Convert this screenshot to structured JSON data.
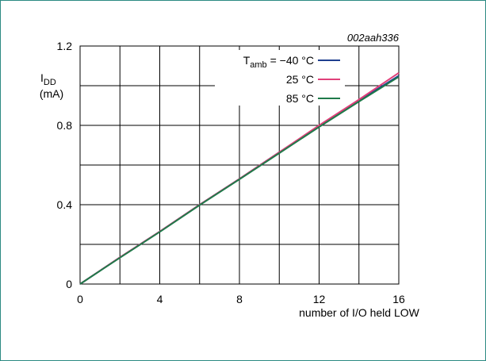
{
  "chart_data": {
    "type": "line",
    "figure_id": "002aah336",
    "xlabel": "number of I/O held LOW",
    "ylabel": "I",
    "ylabel_subscript": "DD",
    "ylabel_unit": "(mA)",
    "xlim": [
      0,
      16
    ],
    "ylim": [
      0,
      1.2
    ],
    "x_ticks": [
      0,
      4,
      8,
      12,
      16
    ],
    "x_tick_labels": [
      "0",
      "4",
      "8",
      "12",
      "16"
    ],
    "y_ticks": [
      0,
      0.4,
      0.8,
      1.2
    ],
    "y_tick_labels": [
      "0",
      "0.4",
      "0.8",
      "1.2"
    ],
    "grid": true,
    "grid_x_step": 2,
    "grid_y_step": 0.2,
    "legend_placement": "top-right",
    "legend_title_prefix": "T",
    "legend_title_subscript": "amb",
    "legend_title_equals": " = ",
    "series": [
      {
        "name": "−40 °C",
        "color": "#1f3f8f",
        "x": [
          0,
          2,
          4,
          6,
          8,
          10,
          12,
          14,
          16
        ],
        "y": [
          0,
          0.135,
          0.265,
          0.4,
          0.53,
          0.665,
          0.795,
          0.925,
          1.05
        ]
      },
      {
        "name": "25 °C",
        "color": "#e0407a",
        "x": [
          0,
          2,
          4,
          6,
          8,
          10,
          12,
          14,
          16
        ],
        "y": [
          0,
          0.135,
          0.265,
          0.4,
          0.53,
          0.665,
          0.8,
          0.93,
          1.065
        ]
      },
      {
        "name": "85 °C",
        "color": "#1f7a4a",
        "x": [
          0,
          2,
          4,
          6,
          8,
          10,
          12,
          14,
          16
        ],
        "y": [
          0,
          0.133,
          0.263,
          0.398,
          0.528,
          0.66,
          0.792,
          0.92,
          1.045
        ]
      }
    ]
  }
}
